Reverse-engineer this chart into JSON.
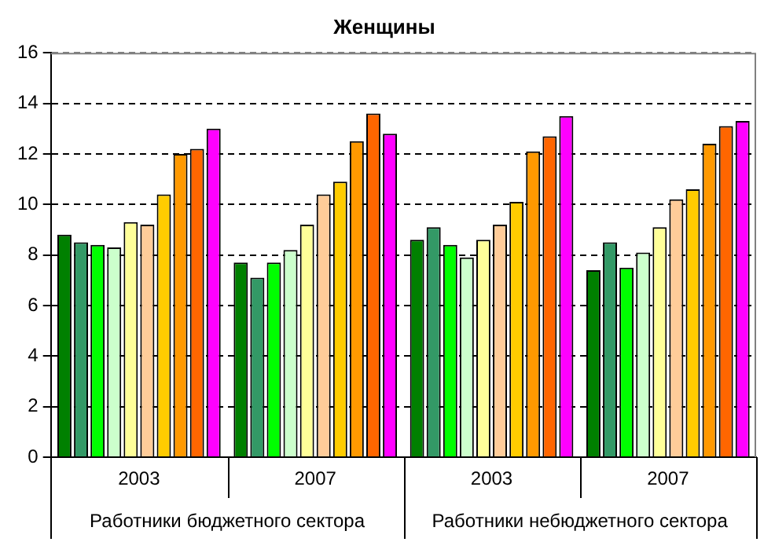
{
  "chart_data": {
    "type": "bar",
    "title": "Женщины",
    "categories": [
      "2003",
      "2007",
      "2003",
      "2007"
    ],
    "annotations": [
      "Работники бюджетного сектора",
      "Работники небюджетного сектора"
    ],
    "series": [
      {
        "color": "#008000",
        "values": [
          8.8,
          7.7,
          8.6,
          7.4
        ]
      },
      {
        "color": "#339966",
        "values": [
          8.5,
          7.1,
          9.1,
          8.5
        ]
      },
      {
        "color": "#00ff00",
        "values": [
          8.4,
          7.7,
          8.4,
          7.5
        ]
      },
      {
        "color": "#ccffcc",
        "values": [
          8.3,
          8.2,
          7.9,
          8.1
        ]
      },
      {
        "color": "#ffff99",
        "values": [
          9.3,
          9.2,
          8.6,
          9.1
        ]
      },
      {
        "color": "#ffcc99",
        "values": [
          9.2,
          10.4,
          9.2,
          10.2
        ]
      },
      {
        "color": "#ffcc00",
        "values": [
          10.4,
          10.9,
          10.1,
          10.6
        ]
      },
      {
        "color": "#ff9900",
        "values": [
          12.0,
          12.5,
          12.1,
          12.4
        ]
      },
      {
        "color": "#ff6600",
        "values": [
          12.2,
          13.6,
          12.7,
          13.1
        ]
      },
      {
        "color": "#ff00ff",
        "values": [
          13.0,
          12.8,
          13.5,
          13.3
        ]
      }
    ],
    "ylim": [
      0,
      16
    ],
    "yticks": [
      0,
      2,
      4,
      6,
      8,
      10,
      12,
      14,
      16
    ],
    "grid": "y",
    "legend": false
  }
}
